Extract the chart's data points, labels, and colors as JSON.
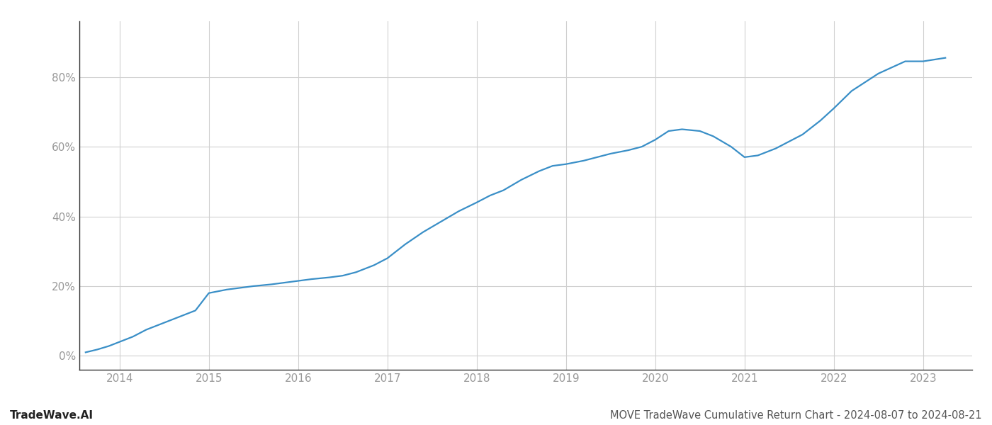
{
  "title": "MOVE TradeWave Cumulative Return Chart - 2024-08-07 to 2024-08-21",
  "watermark": "TradeWave.AI",
  "line_color": "#3a8fc7",
  "background_color": "#ffffff",
  "grid_color": "#d0d0d0",
  "x_years": [
    2014,
    2015,
    2016,
    2017,
    2018,
    2019,
    2020,
    2021,
    2022,
    2023
  ],
  "x_data": [
    2013.62,
    2013.75,
    2013.88,
    2014.0,
    2014.15,
    2014.3,
    2014.5,
    2014.7,
    2014.85,
    2015.0,
    2015.1,
    2015.2,
    2015.35,
    2015.5,
    2015.7,
    2015.85,
    2016.0,
    2016.15,
    2016.35,
    2016.5,
    2016.65,
    2016.85,
    2017.0,
    2017.2,
    2017.4,
    2017.6,
    2017.8,
    2018.0,
    2018.15,
    2018.3,
    2018.5,
    2018.7,
    2018.85,
    2019.0,
    2019.2,
    2019.35,
    2019.5,
    2019.7,
    2019.85,
    2020.0,
    2020.15,
    2020.3,
    2020.5,
    2020.65,
    2020.85,
    2021.0,
    2021.15,
    2021.35,
    2021.65,
    2021.85,
    2022.0,
    2022.2,
    2022.5,
    2022.8,
    2023.0,
    2023.25
  ],
  "y_data": [
    1.0,
    1.8,
    2.8,
    4.0,
    5.5,
    7.5,
    9.5,
    11.5,
    13.0,
    18.0,
    18.5,
    19.0,
    19.5,
    20.0,
    20.5,
    21.0,
    21.5,
    22.0,
    22.5,
    23.0,
    24.0,
    26.0,
    28.0,
    32.0,
    35.5,
    38.5,
    41.5,
    44.0,
    46.0,
    47.5,
    50.5,
    53.0,
    54.5,
    55.0,
    56.0,
    57.0,
    58.0,
    59.0,
    60.0,
    62.0,
    64.5,
    65.0,
    64.5,
    63.0,
    60.0,
    57.0,
    57.5,
    59.5,
    63.5,
    67.5,
    71.0,
    76.0,
    81.0,
    84.5,
    84.5,
    85.5
  ],
  "ylim": [
    -4,
    96
  ],
  "yticks": [
    0,
    20,
    40,
    60,
    80
  ],
  "xlim": [
    2013.55,
    2023.55
  ],
  "title_fontsize": 10.5,
  "watermark_fontsize": 11,
  "tick_fontsize": 11,
  "line_width": 1.6
}
